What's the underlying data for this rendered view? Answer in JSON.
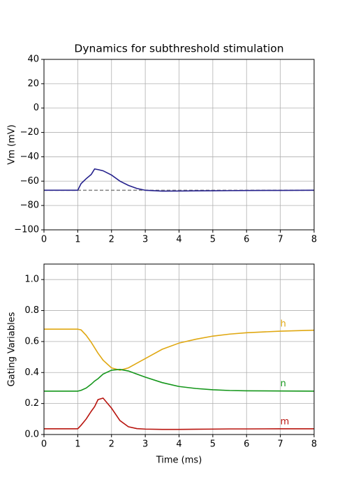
{
  "chart_data": [
    {
      "type": "line",
      "title": "Dynamics for subthreshold stimulation",
      "ylabel": "Vm (mV)",
      "x": [
        0,
        1,
        1.1,
        1.25,
        1.4,
        1.5,
        1.6,
        1.75,
        2,
        2.25,
        2.5,
        2.75,
        3,
        3.5,
        4,
        4.5,
        5,
        5.5,
        6,
        7,
        8
      ],
      "series": [
        {
          "name": "V",
          "color": "#24208c",
          "values": [
            -67.5,
            -67.5,
            -62,
            -58,
            -54.5,
            -50,
            -50.5,
            -51.5,
            -55,
            -60,
            -63.5,
            -66,
            -67.5,
            -68.2,
            -68.1,
            -68,
            -67.9,
            -67.8,
            -67.7,
            -67.6,
            -67.5
          ]
        }
      ],
      "hline": {
        "value": -67.5,
        "color": "#808080"
      },
      "xlim": [
        0,
        8
      ],
      "xticks": [
        0,
        1,
        2,
        3,
        4,
        5,
        6,
        7,
        8
      ],
      "ylim": [
        -100,
        40
      ],
      "yticks": [
        {
          "value": -100,
          "label": "−100"
        },
        {
          "value": -80,
          "label": "−80"
        },
        {
          "value": -60,
          "label": "−60"
        },
        {
          "value": -40,
          "label": "−40"
        },
        {
          "value": -20,
          "label": "−20"
        },
        0,
        20,
        40
      ],
      "grid": true
    },
    {
      "type": "line",
      "xlabel": "Time (ms)",
      "ylabel": "Gating Variables",
      "x": [
        0,
        1,
        1.1,
        1.25,
        1.4,
        1.5,
        1.6,
        1.75,
        2,
        2.25,
        2.5,
        2.75,
        3,
        3.5,
        4,
        4.5,
        5,
        5.5,
        6,
        7,
        8
      ],
      "series": [
        {
          "name": "h",
          "color": "#e0a812",
          "values": [
            0.68,
            0.68,
            0.675,
            0.64,
            0.595,
            0.56,
            0.525,
            0.48,
            0.43,
            0.415,
            0.43,
            0.46,
            0.49,
            0.55,
            0.59,
            0.615,
            0.635,
            0.648,
            0.657,
            0.667,
            0.673
          ]
        },
        {
          "name": "n",
          "color": "#14961a",
          "values": [
            0.28,
            0.28,
            0.285,
            0.3,
            0.325,
            0.345,
            0.36,
            0.39,
            0.415,
            0.42,
            0.41,
            0.39,
            0.37,
            0.335,
            0.31,
            0.297,
            0.289,
            0.284,
            0.282,
            0.281,
            0.28
          ]
        },
        {
          "name": "m",
          "color": "#b8140e",
          "values": [
            0.037,
            0.037,
            0.06,
            0.1,
            0.15,
            0.18,
            0.225,
            0.235,
            0.17,
            0.09,
            0.05,
            0.038,
            0.035,
            0.033,
            0.033,
            0.034,
            0.035,
            0.036,
            0.036,
            0.037,
            0.037
          ]
        }
      ],
      "xlim": [
        0,
        8
      ],
      "xticks": [
        0,
        1,
        2,
        3,
        4,
        5,
        6,
        7,
        8
      ],
      "ylim": [
        0,
        1.1
      ],
      "yticks": [
        {
          "value": 0,
          "label": "0.0"
        },
        {
          "value": 0.2,
          "label": "0.2"
        },
        {
          "value": 0.4,
          "label": "0.4"
        },
        {
          "value": 0.6,
          "label": "0.6"
        },
        {
          "value": 0.8,
          "label": "0.8"
        },
        {
          "value": 1,
          "label": "1.0"
        }
      ],
      "grid": true
    }
  ]
}
